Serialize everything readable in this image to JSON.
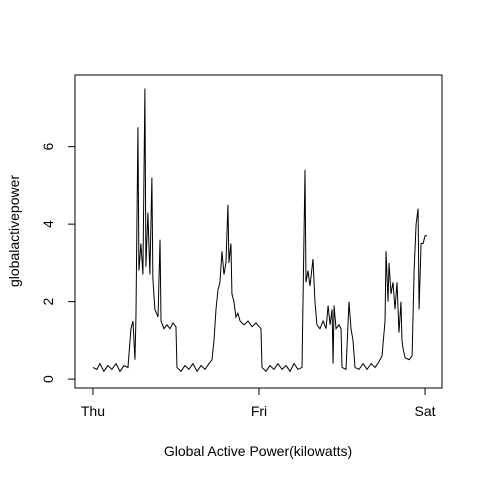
{
  "chart_data": {
    "type": "line",
    "xlabel": "Global Active Power(kilowatts)",
    "ylabel": "globalactivepower",
    "x": [
      0.0,
      0.024,
      0.042,
      0.066,
      0.09,
      0.114,
      0.139,
      0.163,
      0.187,
      0.211,
      0.229,
      0.241,
      0.253,
      0.259,
      0.271,
      0.277,
      0.289,
      0.301,
      0.313,
      0.319,
      0.331,
      0.343,
      0.355,
      0.361,
      0.373,
      0.392,
      0.404,
      0.41,
      0.428,
      0.446,
      0.464,
      0.482,
      0.5,
      0.506,
      0.53,
      0.554,
      0.578,
      0.602,
      0.627,
      0.651,
      0.675,
      0.699,
      0.717,
      0.729,
      0.741,
      0.753,
      0.765,
      0.777,
      0.789,
      0.801,
      0.813,
      0.819,
      0.831,
      0.837,
      0.849,
      0.861,
      0.873,
      0.886,
      0.91,
      0.934,
      0.958,
      0.982,
      1.012,
      1.018,
      1.042,
      1.066,
      1.09,
      1.114,
      1.139,
      1.163,
      1.187,
      1.211,
      1.235,
      1.259,
      1.277,
      1.283,
      1.295,
      1.307,
      1.325,
      1.337,
      1.349,
      1.367,
      1.386,
      1.404,
      1.416,
      1.428,
      1.44,
      1.446,
      1.452,
      1.464,
      1.482,
      1.494,
      1.5,
      1.524,
      1.542,
      1.554,
      1.566,
      1.578,
      1.602,
      1.627,
      1.651,
      1.675,
      1.699,
      1.723,
      1.741,
      1.759,
      1.765,
      1.777,
      1.783,
      1.795,
      1.807,
      1.819,
      1.831,
      1.843,
      1.855,
      1.861,
      1.867,
      1.88,
      1.904,
      1.922,
      1.934,
      1.946,
      1.958,
      1.964,
      1.976,
      1.988,
      2.0,
      2.012
    ],
    "values": [
      0.3,
      0.25,
      0.4,
      0.2,
      0.35,
      0.25,
      0.4,
      0.2,
      0.35,
      0.3,
      1.3,
      1.5,
      0.5,
      1.6,
      6.5,
      2.8,
      3.5,
      2.7,
      7.5,
      2.9,
      4.3,
      2.7,
      5.2,
      2.6,
      1.8,
      1.6,
      3.6,
      1.5,
      1.3,
      1.4,
      1.3,
      1.45,
      1.35,
      0.3,
      0.2,
      0.35,
      0.25,
      0.4,
      0.2,
      0.35,
      0.25,
      0.4,
      0.5,
      1.0,
      1.8,
      2.3,
      2.5,
      3.3,
      2.7,
      3.0,
      4.5,
      3.0,
      3.5,
      2.2,
      2.0,
      1.6,
      1.7,
      1.5,
      1.4,
      1.5,
      1.35,
      1.45,
      1.3,
      0.3,
      0.2,
      0.35,
      0.25,
      0.4,
      0.25,
      0.35,
      0.2,
      0.4,
      0.25,
      0.3,
      5.4,
      2.5,
      2.8,
      2.4,
      3.1,
      2.0,
      1.4,
      1.3,
      1.5,
      1.3,
      1.9,
      1.4,
      1.8,
      0.4,
      1.9,
      1.3,
      1.4,
      1.3,
      0.3,
      0.25,
      2.0,
      1.3,
      1.0,
      0.3,
      0.25,
      0.4,
      0.25,
      0.4,
      0.3,
      0.45,
      0.6,
      1.5,
      3.3,
      2.0,
      3.0,
      2.2,
      2.5,
      1.8,
      2.5,
      1.2,
      2.0,
      1.0,
      0.8,
      0.55,
      0.5,
      0.6,
      2.8,
      4.0,
      4.4,
      1.8,
      3.5,
      3.5,
      3.7,
      3.7
    ],
    "color": "#000000",
    "xlim": [
      -0.108,
      2.102
    ],
    "xticks": [
      {
        "value": 0,
        "label": "Thu"
      },
      {
        "value": 1,
        "label": "Fri"
      },
      {
        "value": 2,
        "label": "Sat"
      }
    ],
    "ylim": [
      -0.23,
      7.85
    ],
    "yticks": [
      0,
      2,
      4,
      6
    ]
  }
}
